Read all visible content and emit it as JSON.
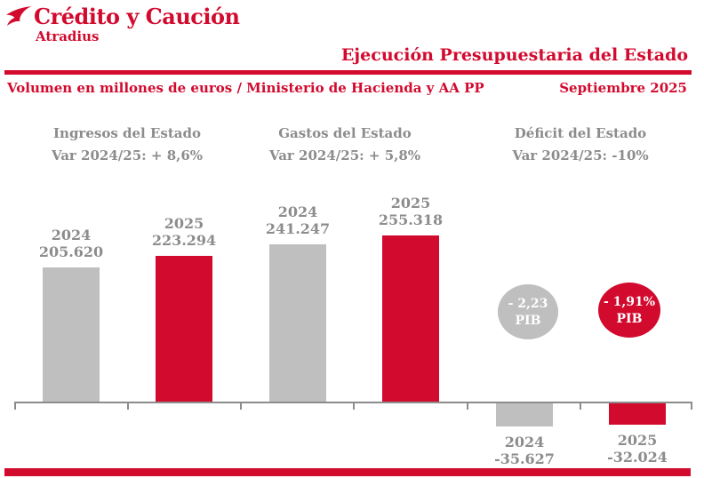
{
  "colors": {
    "red": "#d20a2e",
    "gray_bar": "#bfbfbf",
    "gray_text": "#8c8c8c",
    "axis": "#8c8c8c",
    "white": "#ffffff"
  },
  "brand": {
    "name": "Crédito y Caución",
    "subname": "Atradius"
  },
  "header": {
    "title": "Ejecución Presupuestaria del Estado",
    "subtitle": "Volumen en millones de euros  / Ministerio de Hacienda y AA PP",
    "period": "Septiembre 2025"
  },
  "chart_data": {
    "type": "bar",
    "unit": "millones de euros",
    "baseline_value": 0,
    "gridlines": false,
    "legend": "none",
    "groups": [
      {
        "title": "Ingresos del Estado",
        "variation": "Var 2024/25: + 8,6%",
        "bars": [
          {
            "year": "2024",
            "label": "205.620",
            "value": 205620,
            "color": "gray"
          },
          {
            "year": "2025",
            "label": "223.294",
            "value": 223294,
            "color": "red"
          }
        ]
      },
      {
        "title": "Gastos del Estado",
        "variation": "Var 2024/25: + 5,8%",
        "bars": [
          {
            "year": "2024",
            "label": "241.247",
            "value": 241247,
            "color": "gray"
          },
          {
            "year": "2025",
            "label": "255.318",
            "value": 255318,
            "color": "red"
          }
        ]
      },
      {
        "title": "Déficit del Estado",
        "variation": "Var 2024/25: -10%",
        "bars": [
          {
            "year": "2024",
            "label": "-35.627",
            "value": -35627,
            "color": "gray",
            "pib_line1": "- 2,23",
            "pib_line2": "PIB"
          },
          {
            "year": "2025",
            "label": "-32.024",
            "value": -32024,
            "color": "red",
            "pib_line1": "- 1,91%",
            "pib_line2": "PIB"
          }
        ]
      }
    ]
  }
}
